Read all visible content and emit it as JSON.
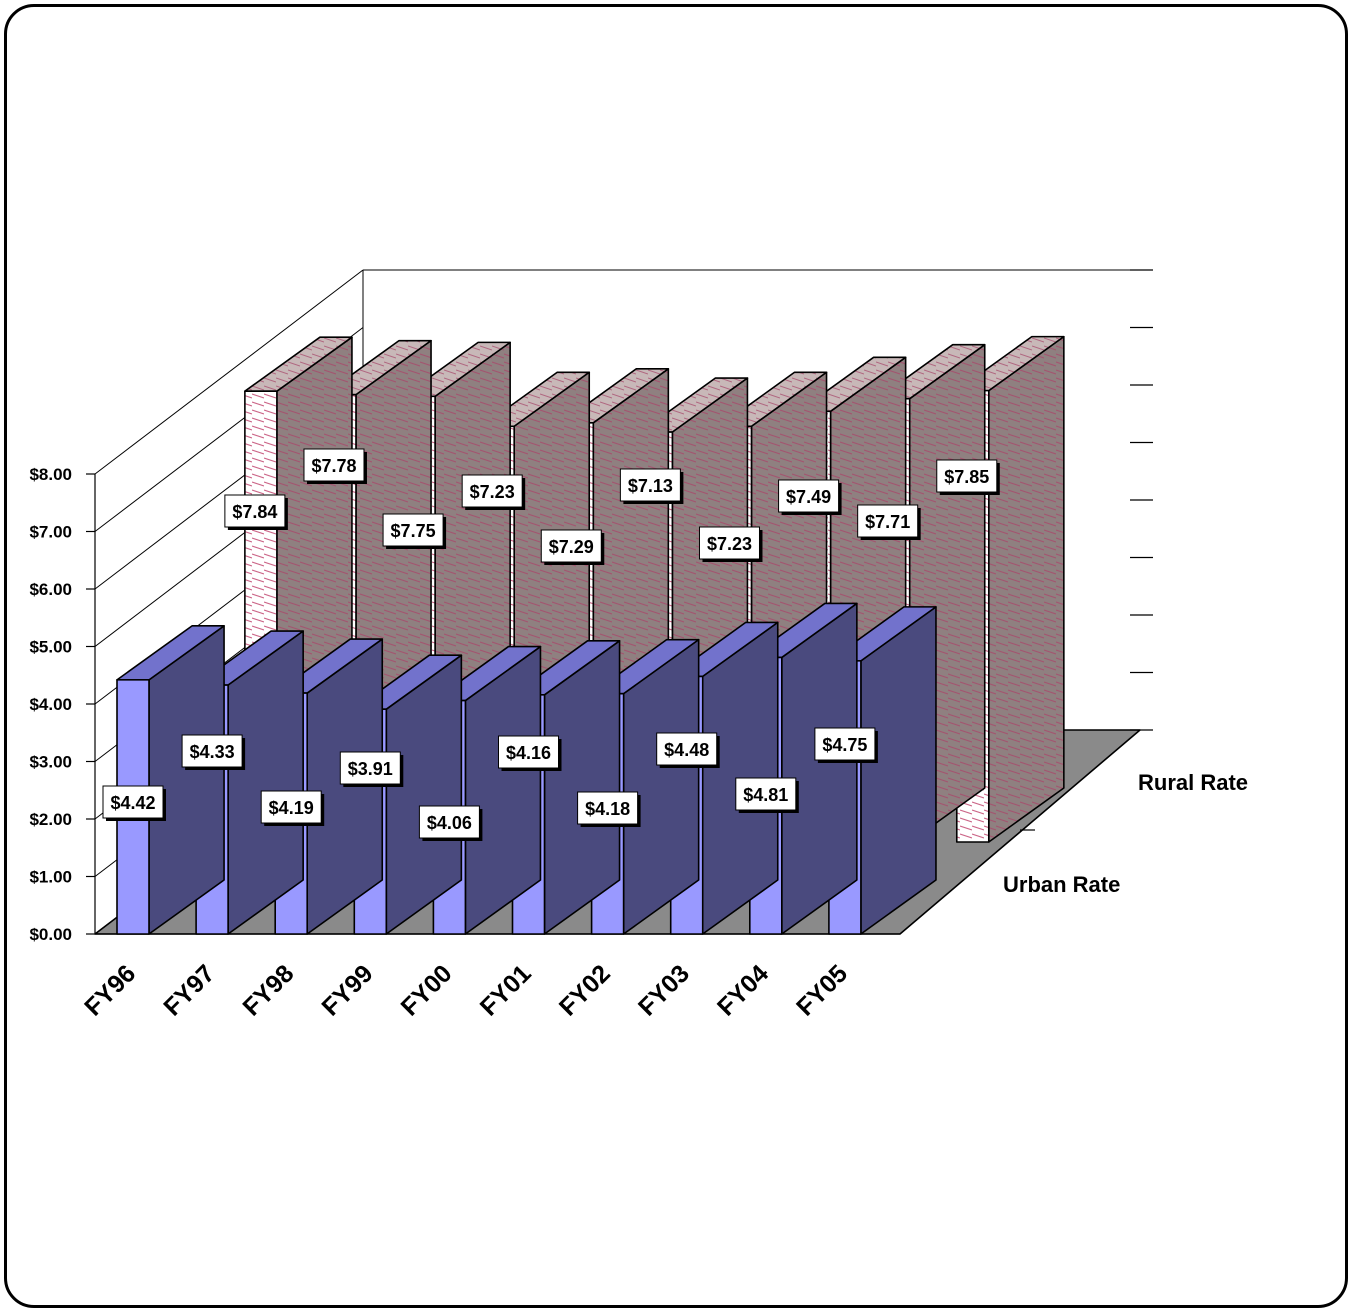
{
  "chart_data": {
    "type": "bar",
    "title": "",
    "xlabel": "",
    "ylabel": "",
    "ylim": [
      0,
      8
    ],
    "y_ticks": [
      "$0.00",
      "$1.00",
      "$2.00",
      "$3.00",
      "$4.00",
      "$5.00",
      "$6.00",
      "$7.00",
      "$8.00"
    ],
    "categories": [
      "FY96",
      "FY97",
      "FY98",
      "FY99",
      "FY00",
      "FY01",
      "FY02",
      "FY03",
      "FY04",
      "FY05"
    ],
    "series": [
      {
        "name": "Urban Rate",
        "values": [
          4.42,
          4.33,
          4.19,
          3.91,
          4.06,
          4.16,
          4.18,
          4.48,
          4.81,
          4.75
        ],
        "labels": [
          "$4.42",
          "$4.33",
          "$4.19",
          "$3.91",
          "$4.06",
          "$4.16",
          "$4.18",
          "$4.48",
          "$4.81",
          "$4.75"
        ]
      },
      {
        "name": "Rural Rate",
        "values": [
          7.84,
          7.78,
          7.75,
          7.23,
          7.29,
          7.13,
          7.23,
          7.49,
          7.71,
          7.85
        ],
        "labels": [
          "$7.84",
          "$7.78",
          "$7.75",
          "$7.23",
          "$7.29",
          "$7.13",
          "$7.23",
          "$7.49",
          "$7.71",
          "$7.85"
        ]
      }
    ],
    "grid": true,
    "legend": "right",
    "colors": {
      "urban_front": "#9999ff",
      "urban_side": "#4a4a7e",
      "urban_top": "#7272cc",
      "rural_front": "#ffffff",
      "rural_side": "#8f8080",
      "rural_top": "#c8b8b8",
      "hatch": "#cc6688",
      "floor": "#8a8a8a"
    }
  }
}
